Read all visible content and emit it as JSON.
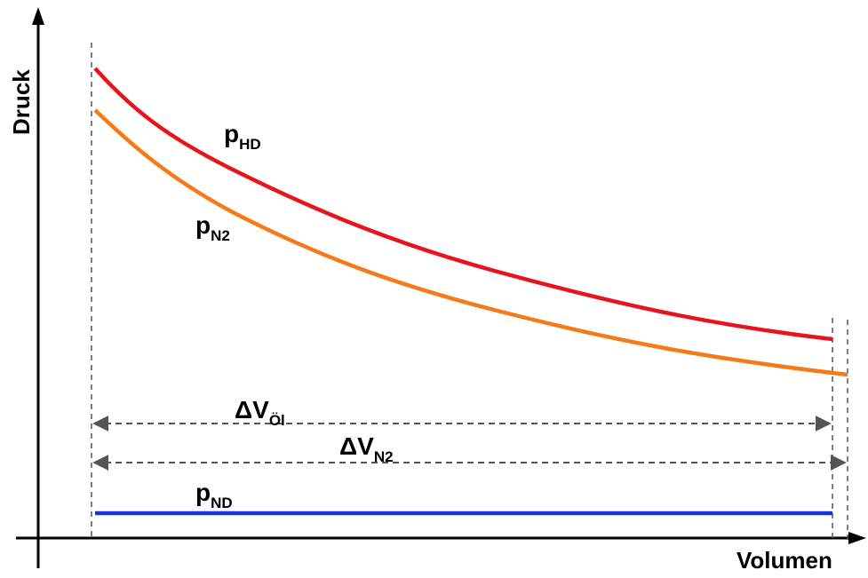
{
  "axes": {
    "y_label": "Druck",
    "x_label": "Volumen"
  },
  "curves": {
    "p_hd": {
      "base": "p",
      "sub": "HD",
      "color": "#e8141c"
    },
    "p_n2": {
      "base": "p",
      "sub": "N2",
      "color": "#f57a1a"
    },
    "p_nd": {
      "base": "p",
      "sub": "ND",
      "color": "#1a33d6"
    }
  },
  "dimensions": {
    "dv_oil": {
      "base": "ΔV",
      "sub": "Öl"
    },
    "dv_n2": {
      "base": "ΔV",
      "sub": "N2"
    }
  },
  "colors": {
    "axis": "#000000",
    "dashed": "#555555",
    "arrow": "#555555"
  }
}
